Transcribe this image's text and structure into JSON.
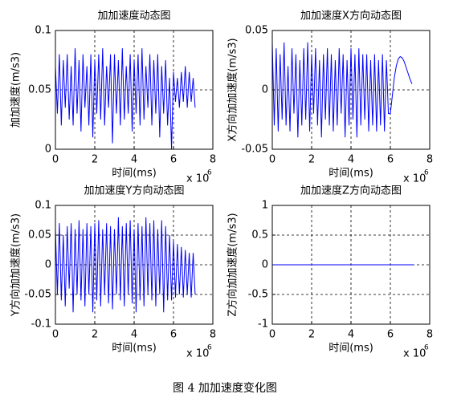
{
  "chart_data": [
    {
      "type": "line",
      "title": "加加速度动态图",
      "xlabel": "时间(ms)",
      "ylabel": "加加速度(m/s3)",
      "x_scale_label": "x 10",
      "x_scale_exponent": "6",
      "x": [
        0,
        0.1,
        0.2,
        0.3,
        0.4,
        0.5,
        0.6,
        0.7,
        0.8,
        0.9,
        1.0,
        1.1,
        1.2,
        1.3,
        1.4,
        1.5,
        1.6,
        1.7,
        1.8,
        1.9,
        2.0,
        2.1,
        2.2,
        2.3,
        2.4,
        2.5,
        2.6,
        2.7,
        2.8,
        2.9,
        3.0,
        3.1,
        3.2,
        3.3,
        3.4,
        3.5,
        3.6,
        3.7,
        3.8,
        3.9,
        4.0,
        4.1,
        4.2,
        4.3,
        4.4,
        4.5,
        4.6,
        4.7,
        4.8,
        4.9,
        5.0,
        5.1,
        5.2,
        5.3,
        5.4,
        5.5,
        5.6,
        5.7,
        5.8,
        5.9,
        6.0,
        6.1,
        6.2,
        6.3,
        6.4,
        6.5,
        6.6,
        6.7,
        6.8,
        6.9,
        7.0,
        7.1
      ],
      "series": [
        {
          "color": "#0000ff",
          "values": [
            0.07,
            0.03,
            0.08,
            0.02,
            0.075,
            0.035,
            0.08,
            0.025,
            0.07,
            0.02,
            0.085,
            0.03,
            0.075,
            0.015,
            0.08,
            0.035,
            0.07,
            0.02,
            0.08,
            0.01,
            0.075,
            0.03,
            0.08,
            0.025,
            0.085,
            0.02,
            0.07,
            0.035,
            0.08,
            0.005,
            0.08,
            0.03,
            0.075,
            0.02,
            0.085,
            0.025,
            0.07,
            0.03,
            0.08,
            0.015,
            0.075,
            0.03,
            0.08,
            0.02,
            0.085,
            0.025,
            0.07,
            0.035,
            0.08,
            0.02,
            0.075,
            0.03,
            0.08,
            0.01,
            0.07,
            0.03,
            0.075,
            0.02,
            0.06,
            0.0,
            0.065,
            0.04,
            0.06,
            0.035,
            0.065,
            0.04,
            0.07,
            0.035,
            0.065,
            0.04,
            0.06,
            0.035
          ]
        }
      ],
      "xlim": [
        0,
        8
      ],
      "xticks": [
        0,
        2,
        4,
        6,
        8
      ],
      "ylim": [
        0,
        0.1
      ],
      "yticks": [
        0,
        0.05,
        0.1
      ],
      "grid": true
    },
    {
      "type": "line",
      "title": "加加速度X方向动态图",
      "xlabel": "时间(ms)",
      "ylabel": "X方向加加速度(m/s3)",
      "x_scale_label": "x 10",
      "x_scale_exponent": "6",
      "x": [
        0,
        0.1,
        0.2,
        0.3,
        0.4,
        0.5,
        0.6,
        0.7,
        0.8,
        0.9,
        1.0,
        1.1,
        1.2,
        1.3,
        1.4,
        1.5,
        1.6,
        1.7,
        1.8,
        1.9,
        2.0,
        2.1,
        2.2,
        2.3,
        2.4,
        2.5,
        2.6,
        2.7,
        2.8,
        2.9,
        3.0,
        3.1,
        3.2,
        3.3,
        3.4,
        3.5,
        3.6,
        3.7,
        3.8,
        3.9,
        4.0,
        4.1,
        4.2,
        4.3,
        4.4,
        4.5,
        4.6,
        4.7,
        4.8,
        4.9,
        5.0,
        5.1,
        5.2,
        5.3,
        5.4,
        5.5,
        5.6,
        5.7,
        5.8,
        5.9,
        6.0,
        6.1,
        6.2,
        6.3,
        6.4,
        6.5,
        6.6,
        6.7,
        6.8,
        6.9,
        7.0,
        7.1
      ],
      "series": [
        {
          "color": "#0000ff",
          "values": [
            0.04,
            -0.03,
            0.035,
            -0.035,
            0.03,
            -0.025,
            0.04,
            -0.03,
            0.02,
            -0.035,
            0.035,
            -0.02,
            0.03,
            -0.04,
            0.025,
            -0.03,
            0.035,
            -0.025,
            0.04,
            -0.035,
            0.03,
            -0.02,
            0.035,
            -0.03,
            0.025,
            -0.04,
            0.03,
            -0.025,
            0.035,
            -0.03,
            0.03,
            -0.035,
            0.025,
            -0.03,
            0.035,
            -0.02,
            0.03,
            -0.04,
            0.025,
            -0.03,
            0.035,
            -0.025,
            0.03,
            -0.04,
            0.035,
            -0.03,
            0.03,
            -0.025,
            0.03,
            -0.035,
            0.025,
            -0.03,
            0.03,
            -0.035,
            0.025,
            -0.03,
            0.03,
            -0.035,
            0.025,
            -0.02,
            -0.02,
            -0.005,
            0.01,
            0.02,
            0.026,
            0.028,
            0.027,
            0.024,
            0.019,
            0.014,
            0.009,
            0.005
          ]
        }
      ],
      "xlim": [
        0,
        8
      ],
      "xticks": [
        0,
        2,
        4,
        6,
        8
      ],
      "ylim": [
        -0.05,
        0.05
      ],
      "yticks": [
        -0.05,
        0,
        0.05
      ],
      "grid": true
    },
    {
      "type": "line",
      "title": "加加速度Y方向动态图",
      "xlabel": "时间(ms)",
      "ylabel": "Y方向加加速度(m/s3)",
      "x_scale_label": "x 10",
      "x_scale_exponent": "6",
      "x": [
        0,
        0.1,
        0.2,
        0.3,
        0.4,
        0.5,
        0.6,
        0.7,
        0.8,
        0.9,
        1.0,
        1.1,
        1.2,
        1.3,
        1.4,
        1.5,
        1.6,
        1.7,
        1.8,
        1.9,
        2.0,
        2.1,
        2.2,
        2.3,
        2.4,
        2.5,
        2.6,
        2.7,
        2.8,
        2.9,
        3.0,
        3.1,
        3.2,
        3.3,
        3.4,
        3.5,
        3.6,
        3.7,
        3.8,
        3.9,
        4.0,
        4.1,
        4.2,
        4.3,
        4.4,
        4.5,
        4.6,
        4.7,
        4.8,
        4.9,
        5.0,
        5.1,
        5.2,
        5.3,
        5.4,
        5.5,
        5.6,
        5.7,
        5.8,
        5.9,
        6.0,
        6.1,
        6.2,
        6.3,
        6.4,
        6.5,
        6.6,
        6.7,
        6.8,
        6.9,
        7.0,
        7.1
      ],
      "series": [
        {
          "color": "#0000ff",
          "values": [
            0.06,
            -0.05,
            0.07,
            -0.06,
            0.05,
            -0.07,
            0.065,
            -0.04,
            0.07,
            -0.08,
            0.06,
            -0.05,
            0.075,
            -0.06,
            0.06,
            -0.07,
            0.07,
            -0.05,
            0.065,
            -0.08,
            0.07,
            -0.06,
            0.075,
            -0.07,
            0.06,
            -0.05,
            0.07,
            -0.065,
            0.065,
            -0.075,
            0.06,
            -0.05,
            0.08,
            -0.06,
            0.065,
            -0.07,
            0.07,
            -0.05,
            0.075,
            -0.065,
            0.06,
            -0.08,
            0.07,
            -0.06,
            0.065,
            -0.07,
            0.08,
            -0.05,
            0.07,
            -0.06,
            0.075,
            -0.07,
            0.06,
            -0.05,
            0.075,
            -0.08,
            0.065,
            -0.06,
            0.05,
            -0.06,
            0.04,
            -0.055,
            0.035,
            -0.05,
            0.03,
            -0.055,
            0.025,
            -0.05,
            0.02,
            -0.055,
            0.02,
            -0.05
          ]
        }
      ],
      "xlim": [
        0,
        8
      ],
      "xticks": [
        0,
        2,
        4,
        6,
        8
      ],
      "ylim": [
        -0.1,
        0.1
      ],
      "yticks": [
        -0.1,
        -0.05,
        0,
        0.05,
        0.1
      ],
      "grid": true
    },
    {
      "type": "line",
      "title": "加加速度Z方向动态图",
      "xlabel": "时间(ms)",
      "ylabel": "Z方向加加速度(m/s3)",
      "x_scale_label": "x 10",
      "x_scale_exponent": "6",
      "x": [
        0,
        7.2
      ],
      "series": [
        {
          "color": "#0000ff",
          "values": [
            0,
            0
          ]
        }
      ],
      "xlim": [
        0,
        8
      ],
      "xticks": [
        0,
        2,
        4,
        6,
        8
      ],
      "ylim": [
        -1,
        1
      ],
      "yticks": [
        -1,
        -0.5,
        0,
        0.5,
        1
      ],
      "grid": true
    }
  ],
  "caption": "图 4  加加速度变化图"
}
